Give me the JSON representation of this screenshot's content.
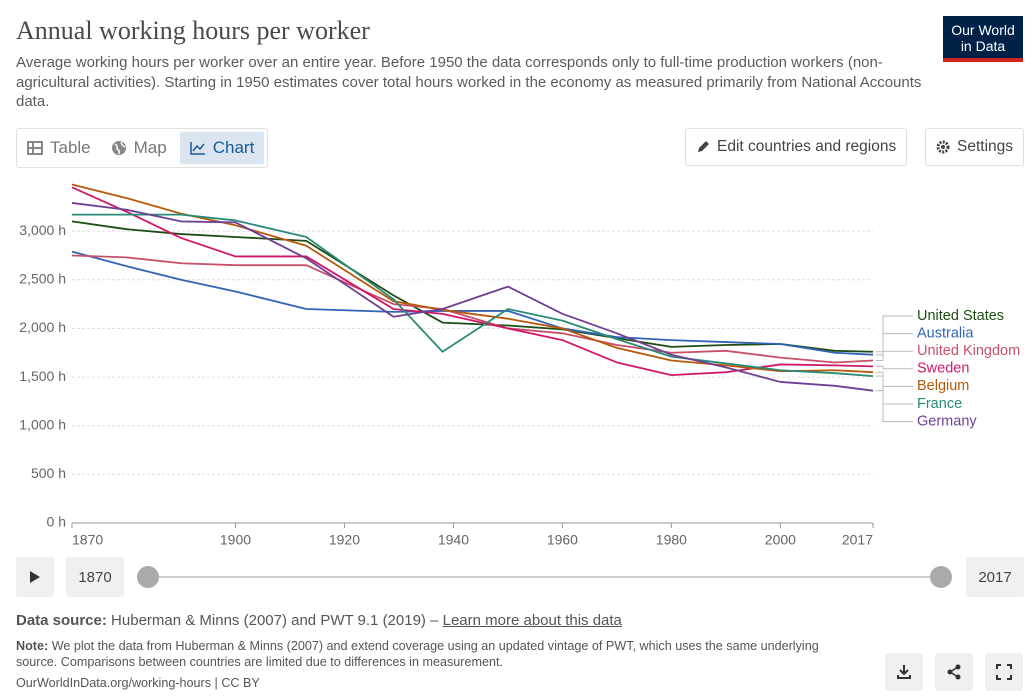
{
  "header": {
    "title": "Annual working hours per worker",
    "subtitle": "Average working hours per worker over an entire year. Before 1950 the data corresponds only to full-time production workers (non-agricultural activities). Starting in 1950 estimates cover total hours worked in the economy as measured primarily from National Accounts data.",
    "logo": [
      "Our World",
      "in Data"
    ]
  },
  "tabs": [
    "Table",
    "Map",
    "Chart"
  ],
  "buttons": [
    "Edit countries and regions",
    "Settings"
  ],
  "chart_data": {
    "type": "line",
    "x": [
      1870,
      1880,
      1890,
      1900,
      1913,
      1929,
      1938,
      1950,
      1960,
      1970,
      1980,
      1990,
      2000,
      2010,
      2017
    ],
    "xlim": [
      1870,
      2017
    ],
    "xticks": [
      1870,
      1900,
      1920,
      1940,
      1960,
      1980,
      2000,
      2017
    ],
    "ylim": [
      0,
      3500
    ],
    "yticks": [
      {
        "value": 0,
        "label": "0 h"
      },
      {
        "value": 500,
        "label": "500 h"
      },
      {
        "value": 1000,
        "label": "1,000 h"
      },
      {
        "value": 1500,
        "label": "1,500 h"
      },
      {
        "value": 2000,
        "label": "2,000 h"
      },
      {
        "value": 2500,
        "label": "2,500 h"
      },
      {
        "value": 3000,
        "label": "3,000 h"
      }
    ],
    "grid": true,
    "series": [
      {
        "name": "United States",
        "color": "#1e4d14",
        "values": [
          3100,
          3020,
          2970,
          2940,
          2900,
          2340,
          2060,
          2030,
          1990,
          1900,
          1810,
          1830,
          1840,
          1770,
          1760
        ]
      },
      {
        "name": "Australia",
        "color": "#3064b4",
        "values": [
          2790,
          2640,
          2500,
          2380,
          2200,
          2170,
          2180,
          2180,
          2000,
          1910,
          1880,
          1860,
          1840,
          1750,
          1730
        ]
      },
      {
        "name": "United Kingdom",
        "color": "#c8506a",
        "values": [
          2750,
          2730,
          2670,
          2650,
          2650,
          2250,
          2200,
          2000,
          1950,
          1830,
          1750,
          1770,
          1700,
          1650,
          1670
        ]
      },
      {
        "name": "Sweden",
        "color": "#d0186a",
        "values": [
          3450,
          3200,
          2930,
          2740,
          2740,
          2200,
          2150,
          2000,
          1880,
          1650,
          1520,
          1550,
          1630,
          1620,
          1610
        ]
      },
      {
        "name": "Belgium",
        "color": "#b8590c",
        "values": [
          3480,
          3340,
          3180,
          3060,
          2850,
          2280,
          2190,
          2100,
          2000,
          1800,
          1670,
          1620,
          1560,
          1570,
          1550
        ]
      },
      {
        "name": "France",
        "color": "#2a8a78",
        "values": [
          3170,
          3170,
          3170,
          3110,
          2940,
          2300,
          1760,
          2200,
          2080,
          1890,
          1710,
          1640,
          1570,
          1540,
          1510
        ]
      },
      {
        "name": "Germany",
        "color": "#6f3f94",
        "values": [
          3290,
          3220,
          3100,
          3090,
          2720,
          2120,
          2200,
          2430,
          2150,
          1950,
          1730,
          1600,
          1450,
          1410,
          1360
        ]
      }
    ]
  },
  "timeline": {
    "start": 1870,
    "end": 2017
  },
  "footer": {
    "source_label": "Data source:",
    "source": "Huberman & Minns (2007) and PWT 9.1 (2019) –",
    "learn_more": "Learn more about this data",
    "note_label": "Note:",
    "note": "We plot the data from Huberman & Minns (2007) and extend coverage using an updated vintage of PWT, which uses the same underlying source. Comparisons between countries are limited due to differences in measurement.",
    "url": "OurWorldInData.org/working-hours | CC BY"
  }
}
